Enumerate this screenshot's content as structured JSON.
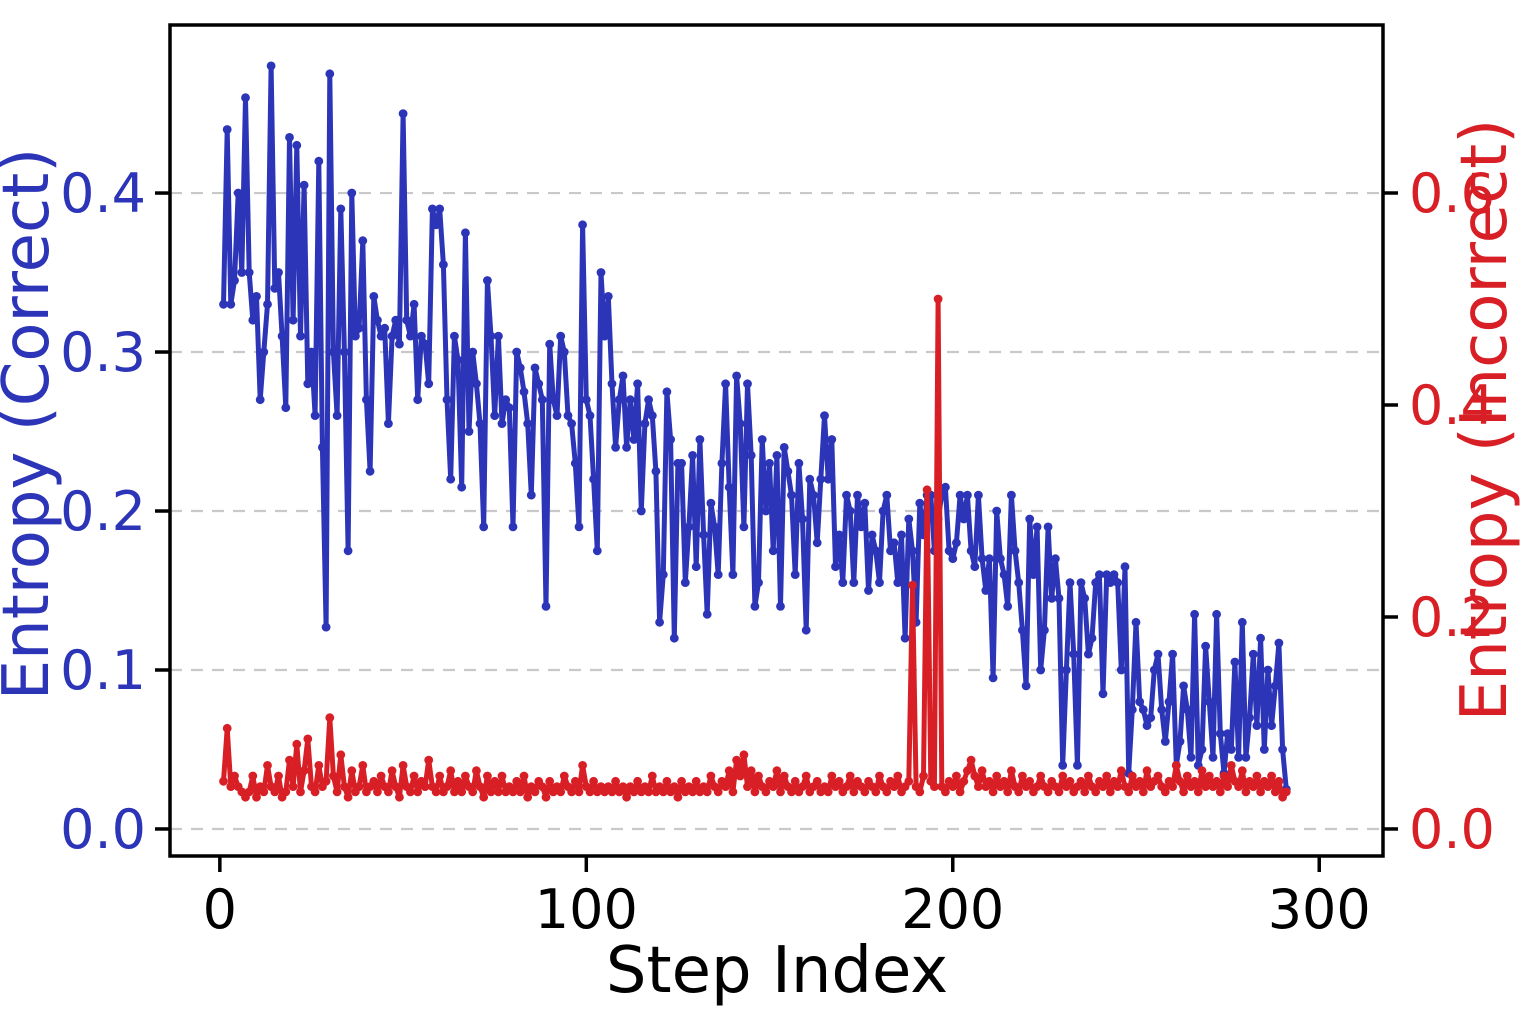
{
  "chart_data": {
    "type": "line",
    "title": "",
    "xlabel": "Step Index",
    "x_tick_labels": [
      "0",
      "100",
      "200",
      "300"
    ],
    "xlim": [
      -13.6,
      317.4
    ],
    "x_start": 1,
    "grid": {
      "horizontal_dashed": true,
      "color": "#c9c9c9"
    },
    "legend": "none",
    "left_axis": {
      "label": "Entropy (Correct)",
      "color": "#2c34b8",
      "tick_labels": [
        "0.0",
        "0.1",
        "0.2",
        "0.3",
        "0.4"
      ],
      "lim": [
        -0.017,
        0.5057
      ]
    },
    "right_axis": {
      "label": "Entropy (Incorrect)",
      "color": "#d81f26",
      "tick_labels": [
        "0.0",
        "0.2",
        "0.4",
        "0.6"
      ],
      "lim": [
        -0.0255,
        0.7585
      ]
    },
    "series": [
      {
        "name": "Entropy (Correct)",
        "axis": "left",
        "color": "#2c34b8",
        "values": [
          0.33,
          0.44,
          0.33,
          0.345,
          0.4,
          0.35,
          0.46,
          0.35,
          0.32,
          0.335,
          0.27,
          0.3,
          0.33,
          0.48,
          0.34,
          0.35,
          0.31,
          0.265,
          0.435,
          0.32,
          0.43,
          0.31,
          0.405,
          0.28,
          0.3,
          0.26,
          0.42,
          0.24,
          0.127,
          0.475,
          0.3,
          0.26,
          0.39,
          0.3,
          0.175,
          0.4,
          0.31,
          0.315,
          0.37,
          0.27,
          0.225,
          0.335,
          0.32,
          0.31,
          0.315,
          0.255,
          0.31,
          0.32,
          0.305,
          0.45,
          0.32,
          0.31,
          0.33,
          0.27,
          0.31,
          0.305,
          0.28,
          0.39,
          0.38,
          0.39,
          0.355,
          0.27,
          0.22,
          0.31,
          0.295,
          0.215,
          0.375,
          0.25,
          0.3,
          0.28,
          0.255,
          0.19,
          0.345,
          0.31,
          0.26,
          0.31,
          0.255,
          0.27,
          0.265,
          0.19,
          0.3,
          0.29,
          0.275,
          0.255,
          0.21,
          0.29,
          0.28,
          0.27,
          0.14,
          0.305,
          0.27,
          0.26,
          0.31,
          0.3,
          0.26,
          0.255,
          0.23,
          0.19,
          0.38,
          0.27,
          0.26,
          0.22,
          0.175,
          0.35,
          0.31,
          0.335,
          0.28,
          0.24,
          0.27,
          0.285,
          0.24,
          0.27,
          0.245,
          0.28,
          0.2,
          0.255,
          0.27,
          0.26,
          0.225,
          0.13,
          0.16,
          0.275,
          0.245,
          0.12,
          0.23,
          0.23,
          0.155,
          0.19,
          0.235,
          0.165,
          0.245,
          0.185,
          0.135,
          0.205,
          0.19,
          0.16,
          0.23,
          0.28,
          0.215,
          0.16,
          0.285,
          0.255,
          0.19,
          0.28,
          0.235,
          0.14,
          0.155,
          0.245,
          0.2,
          0.23,
          0.175,
          0.235,
          0.14,
          0.24,
          0.225,
          0.21,
          0.16,
          0.23,
          0.195,
          0.125,
          0.22,
          0.21,
          0.18,
          0.22,
          0.26,
          0.22,
          0.245,
          0.165,
          0.185,
          0.155,
          0.21,
          0.2,
          0.155,
          0.21,
          0.19,
          0.205,
          0.15,
          0.185,
          0.175,
          0.155,
          0.2,
          0.21,
          0.175,
          0.18,
          0.155,
          0.185,
          0.12,
          0.195,
          0.175,
          0.13,
          0.205,
          0.185,
          0.21,
          0.21,
          0.175,
          0.195,
          0.21,
          0.215,
          0.175,
          0.17,
          0.18,
          0.21,
          0.195,
          0.21,
          0.175,
          0.165,
          0.21,
          0.17,
          0.15,
          0.17,
          0.095,
          0.2,
          0.17,
          0.16,
          0.14,
          0.21,
          0.175,
          0.155,
          0.125,
          0.09,
          0.195,
          0.16,
          0.19,
          0.1,
          0.125,
          0.19,
          0.145,
          0.17,
          0.145,
          0.04,
          0.1,
          0.155,
          0.11,
          0.04,
          0.155,
          0.145,
          0.11,
          0.12,
          0.155,
          0.16,
          0.085,
          0.16,
          0.155,
          0.16,
          0.155,
          0.1,
          0.165,
          0.035,
          0.075,
          0.13,
          0.08,
          0.075,
          0.065,
          0.07,
          0.1,
          0.11,
          0.075,
          0.055,
          0.08,
          0.11,
          0.04,
          0.055,
          0.09,
          0.075,
          0.045,
          0.135,
          0.04,
          0.05,
          0.115,
          0.08,
          0.045,
          0.135,
          0.06,
          0.035,
          0.06,
          0.05,
          0.105,
          0.045,
          0.13,
          0.045,
          0.07,
          0.11,
          0.065,
          0.12,
          0.05,
          0.1,
          0.065,
          0.09,
          0.117,
          0.05,
          0.025
        ]
      },
      {
        "name": "Entropy (Incorrect)",
        "axis": "right",
        "color": "#d81f26",
        "values": [
          0.045,
          0.095,
          0.04,
          0.05,
          0.04,
          0.035,
          0.03,
          0.035,
          0.05,
          0.03,
          0.04,
          0.035,
          0.06,
          0.04,
          0.035,
          0.05,
          0.03,
          0.035,
          0.065,
          0.04,
          0.08,
          0.035,
          0.055,
          0.085,
          0.04,
          0.035,
          0.06,
          0.04,
          0.045,
          0.105,
          0.05,
          0.035,
          0.07,
          0.04,
          0.03,
          0.055,
          0.035,
          0.04,
          0.06,
          0.035,
          0.04,
          0.045,
          0.035,
          0.05,
          0.04,
          0.035,
          0.055,
          0.04,
          0.03,
          0.06,
          0.04,
          0.035,
          0.05,
          0.035,
          0.045,
          0.04,
          0.065,
          0.04,
          0.035,
          0.05,
          0.035,
          0.04,
          0.055,
          0.035,
          0.045,
          0.035,
          0.05,
          0.04,
          0.035,
          0.055,
          0.04,
          0.03,
          0.05,
          0.035,
          0.045,
          0.035,
          0.05,
          0.035,
          0.04,
          0.035,
          0.045,
          0.035,
          0.05,
          0.03,
          0.04,
          0.035,
          0.045,
          0.04,
          0.03,
          0.045,
          0.035,
          0.04,
          0.035,
          0.05,
          0.04,
          0.035,
          0.045,
          0.035,
          0.06,
          0.04,
          0.035,
          0.045,
          0.035,
          0.04,
          0.035,
          0.04,
          0.035,
          0.045,
          0.035,
          0.04,
          0.03,
          0.04,
          0.035,
          0.045,
          0.035,
          0.04,
          0.035,
          0.05,
          0.035,
          0.04,
          0.035,
          0.045,
          0.035,
          0.04,
          0.03,
          0.045,
          0.035,
          0.04,
          0.035,
          0.045,
          0.035,
          0.04,
          0.035,
          0.05,
          0.04,
          0.035,
          0.045,
          0.04,
          0.055,
          0.035,
          0.065,
          0.05,
          0.07,
          0.04,
          0.055,
          0.035,
          0.05,
          0.04,
          0.035,
          0.045,
          0.04,
          0.055,
          0.035,
          0.05,
          0.04,
          0.035,
          0.045,
          0.035,
          0.04,
          0.05,
          0.035,
          0.04,
          0.045,
          0.035,
          0.04,
          0.035,
          0.05,
          0.04,
          0.045,
          0.035,
          0.04,
          0.05,
          0.035,
          0.045,
          0.04,
          0.035,
          0.045,
          0.04,
          0.035,
          0.05,
          0.04,
          0.035,
          0.045,
          0.04,
          0.05,
          0.035,
          0.04,
          0.045,
          0.23,
          0.04,
          0.035,
          0.05,
          0.32,
          0.045,
          0.04,
          0.5,
          0.04,
          0.035,
          0.045,
          0.04,
          0.05,
          0.035,
          0.045,
          0.055,
          0.065,
          0.05,
          0.04,
          0.055,
          0.04,
          0.045,
          0.035,
          0.05,
          0.04,
          0.045,
          0.035,
          0.055,
          0.04,
          0.035,
          0.05,
          0.04,
          0.045,
          0.035,
          0.04,
          0.05,
          0.04,
          0.035,
          0.045,
          0.04,
          0.035,
          0.05,
          0.04,
          0.045,
          0.035,
          0.04,
          0.045,
          0.035,
          0.05,
          0.04,
          0.035,
          0.045,
          0.04,
          0.05,
          0.035,
          0.045,
          0.04,
          0.055,
          0.04,
          0.035,
          0.05,
          0.04,
          0.045,
          0.035,
          0.055,
          0.04,
          0.045,
          0.05,
          0.04,
          0.035,
          0.045,
          0.04,
          0.06,
          0.045,
          0.035,
          0.05,
          0.04,
          0.045,
          0.035,
          0.055,
          0.04,
          0.05,
          0.04,
          0.045,
          0.035,
          0.05,
          0.04,
          0.06,
          0.045,
          0.04,
          0.055,
          0.035,
          0.045,
          0.04,
          0.05,
          0.035,
          0.045,
          0.04,
          0.05,
          0.035,
          0.045,
          0.03,
          0.035
        ]
      }
    ]
  }
}
